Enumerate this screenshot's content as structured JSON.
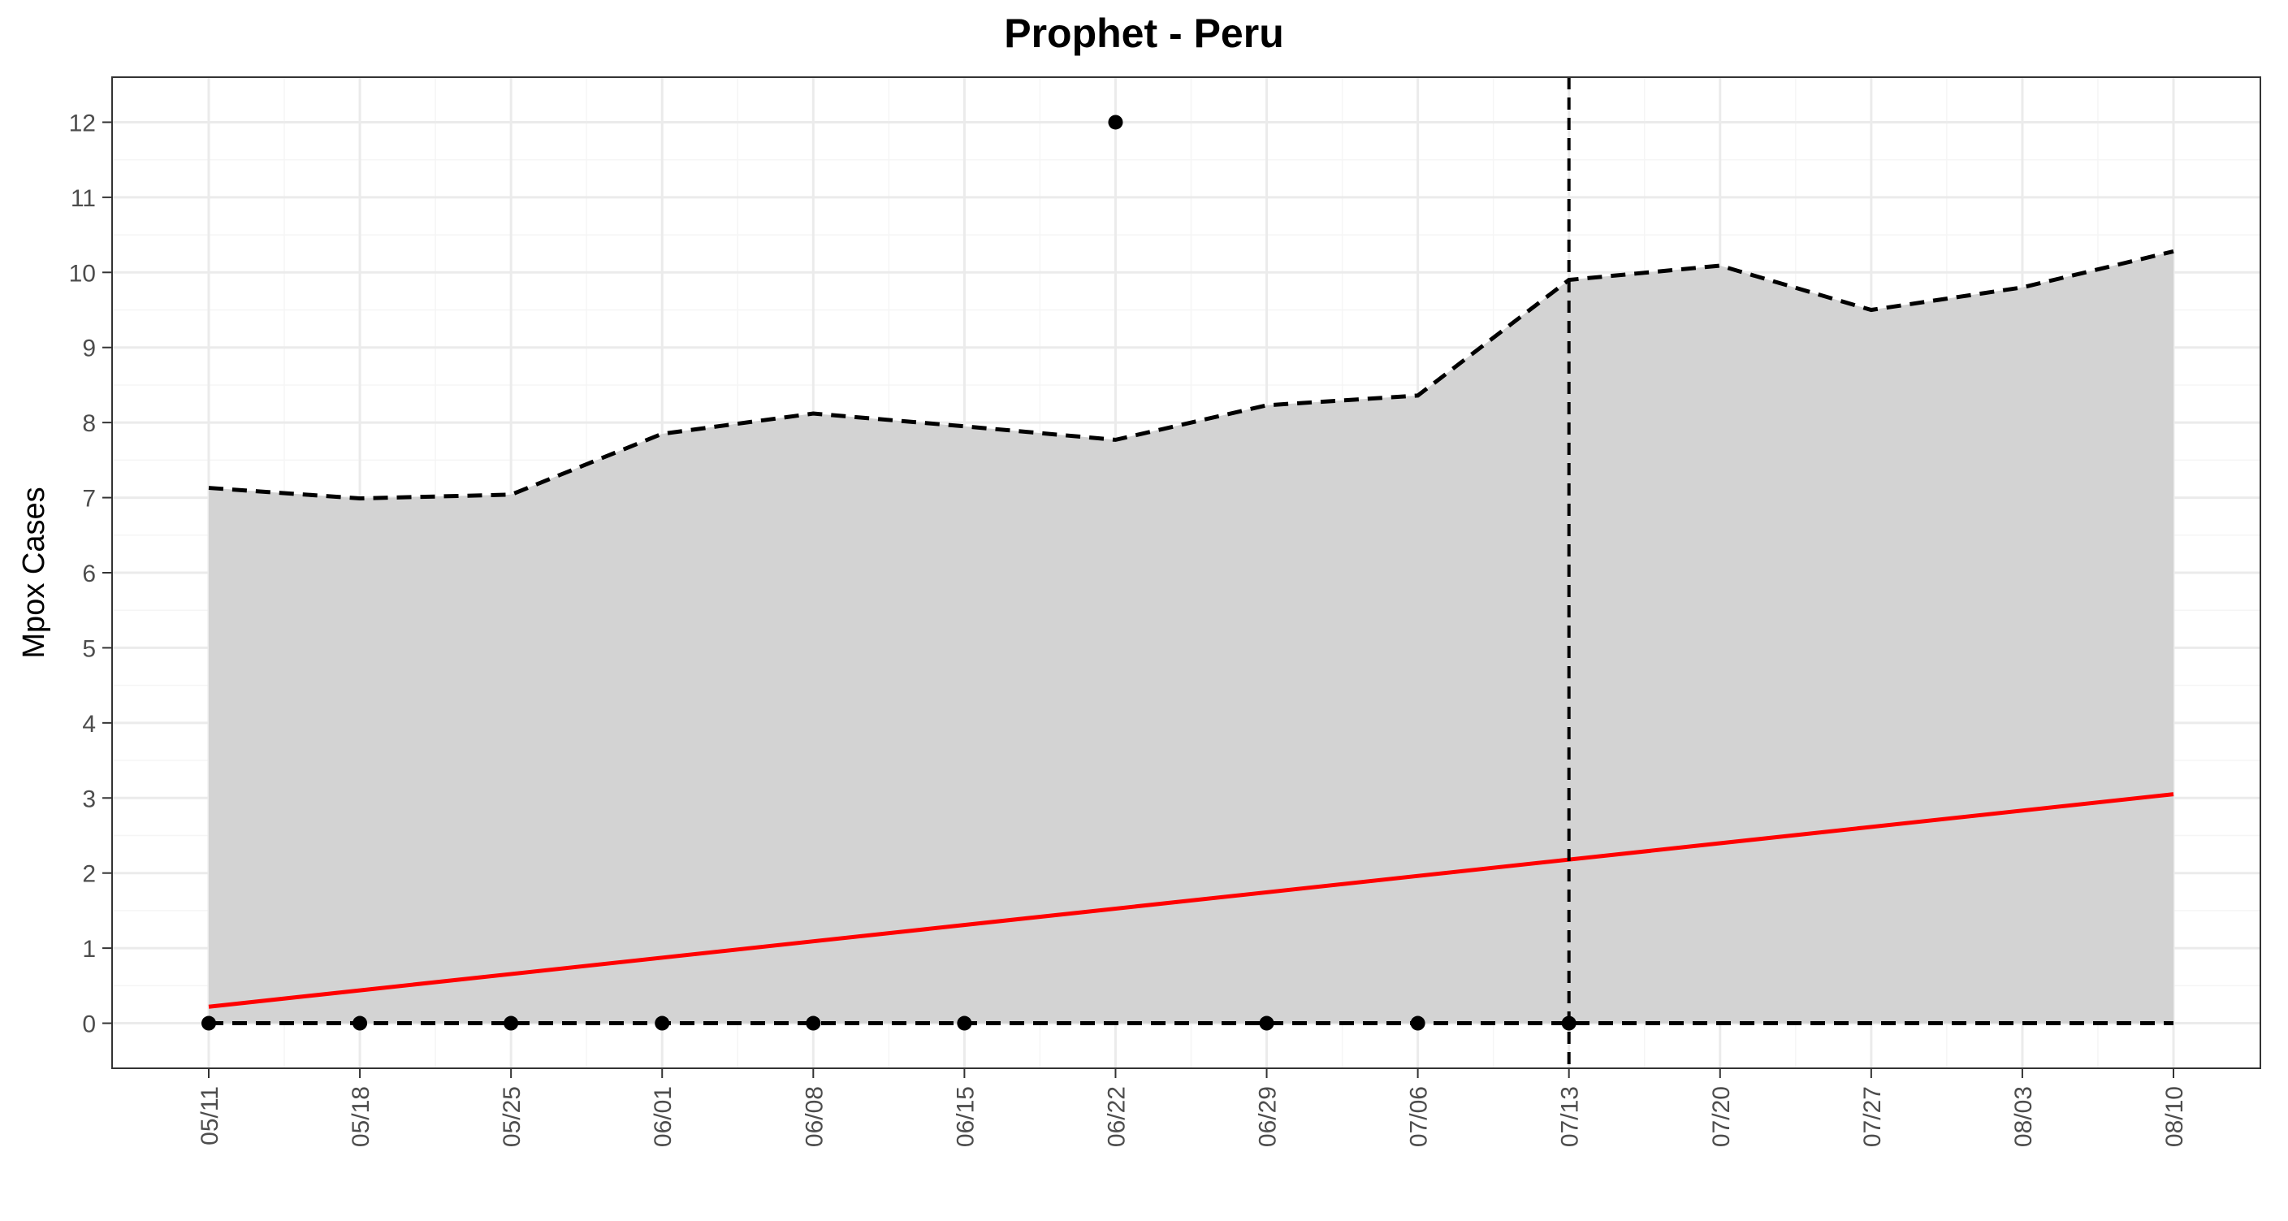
{
  "chart_data": {
    "type": "line",
    "title": "Prophet - Peru",
    "xlabel": "",
    "ylabel": "Mpox Cases",
    "x_ticks": [
      "05/11",
      "05/18",
      "05/25",
      "06/01",
      "06/08",
      "06/15",
      "06/22",
      "06/29",
      "07/06",
      "07/13",
      "07/20",
      "07/27",
      "08/03",
      "08/10"
    ],
    "ylim": [
      -0.6,
      12.6
    ],
    "y_ticks": [
      0,
      1,
      2,
      3,
      4,
      5,
      6,
      7,
      8,
      9,
      10,
      11,
      12
    ],
    "grid": true,
    "forecast_start": "07/13",
    "series": [
      {
        "kind": "interval_upper",
        "x": [
          "05/11",
          "05/18",
          "05/25",
          "06/01",
          "06/08",
          "06/15",
          "06/22",
          "06/29",
          "07/06",
          "07/13",
          "07/20",
          "07/27",
          "08/03",
          "08/10"
        ],
        "values": [
          7.13,
          6.99,
          7.04,
          7.85,
          8.12,
          7.95,
          7.77,
          8.23,
          8.36,
          9.9,
          10.09,
          9.5,
          9.8,
          10.28
        ]
      },
      {
        "kind": "interval_lower",
        "x": [
          "05/11",
          "05/18",
          "05/25",
          "06/01",
          "06/08",
          "06/15",
          "06/22",
          "06/29",
          "07/06",
          "07/13",
          "07/20",
          "07/27",
          "08/03",
          "08/10"
        ],
        "values": [
          0,
          0,
          0,
          0,
          0,
          0,
          0,
          0,
          0,
          0,
          0,
          0,
          0,
          0
        ]
      },
      {
        "kind": "forecast",
        "x": [
          "05/11",
          "08/10"
        ],
        "values": [
          0.22,
          3.05
        ]
      },
      {
        "kind": "observed",
        "x": [
          "05/11",
          "05/18",
          "05/25",
          "06/01",
          "06/08",
          "06/15",
          "06/22",
          "06/29",
          "07/06",
          "07/13"
        ],
        "values": [
          0,
          0,
          0,
          0,
          0,
          0,
          12,
          0,
          0,
          0
        ]
      }
    ],
    "colors": {
      "ribbon": "#d3d3d3",
      "forecast_line": "#ff0000",
      "interval_line": "#000000",
      "points": "#000000",
      "grid_major": "#ebebeb",
      "grid_minor": "#f5f5f5",
      "panel_border": "#333333",
      "tick_label": "#4d4d4d"
    }
  }
}
